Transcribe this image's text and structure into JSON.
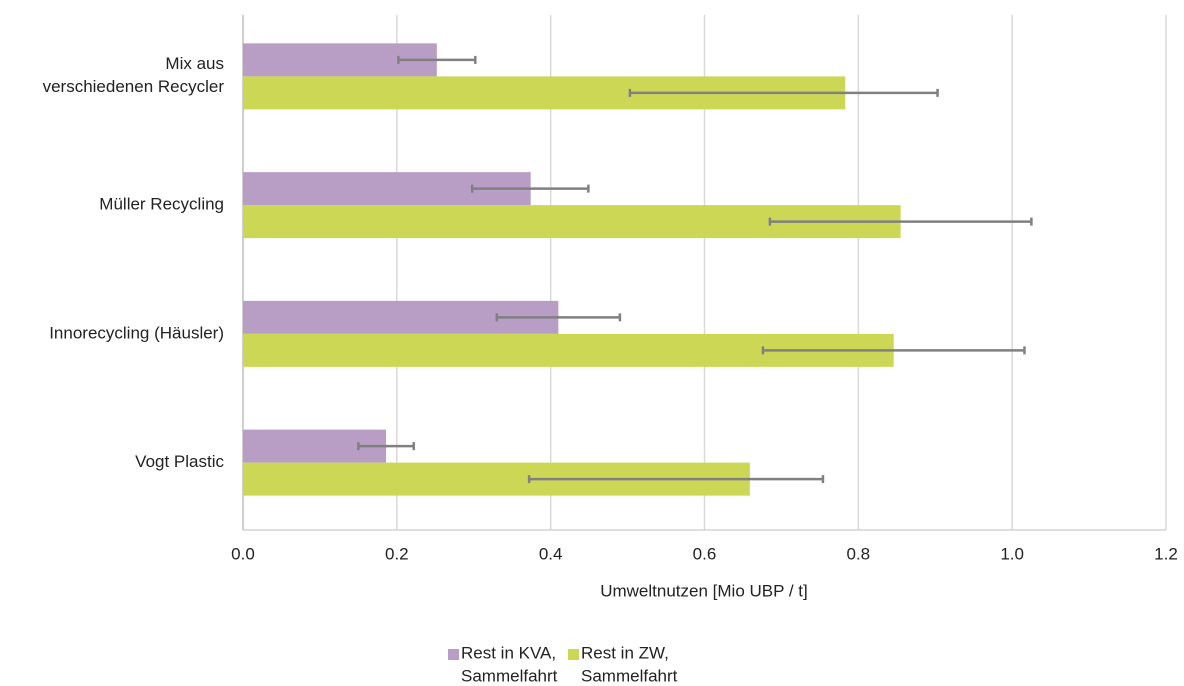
{
  "chart_data": {
    "type": "bar",
    "orientation": "horizontal",
    "xlabel": "Umweltnutzen [Mio UBP / t]",
    "categories": [
      "Mix aus\nverschiedenen Recycler",
      "Müller Recycling",
      "Innorecycling (Häusler)",
      "Vogt Plastic"
    ],
    "series": [
      {
        "name": "Rest in KVA,\nSammelfahrt",
        "color": "#b89ec4",
        "values": [
          0.252,
          0.374,
          0.41,
          0.186
        ],
        "err_minus": [
          0.05,
          0.076,
          0.08,
          0.036
        ],
        "err_plus": [
          0.05,
          0.075,
          0.08,
          0.036
        ]
      },
      {
        "name": "Rest in ZW,\nSammelfahrt",
        "color": "#ccd755",
        "values": [
          0.783,
          0.855,
          0.846,
          0.659
        ],
        "err_minus": [
          0.28,
          0.17,
          0.17,
          0.287
        ],
        "err_plus": [
          0.12,
          0.17,
          0.17,
          0.095
        ]
      }
    ],
    "error_color": "#808080",
    "xlim": [
      0,
      1.2
    ],
    "xticks": [
      {
        "value": 0,
        "label": "0.0"
      },
      0.2,
      0.4,
      0.6,
      0.8,
      {
        "value": 1,
        "label": "1.0"
      },
      1.2
    ],
    "grid": true,
    "legend": "bottom"
  }
}
